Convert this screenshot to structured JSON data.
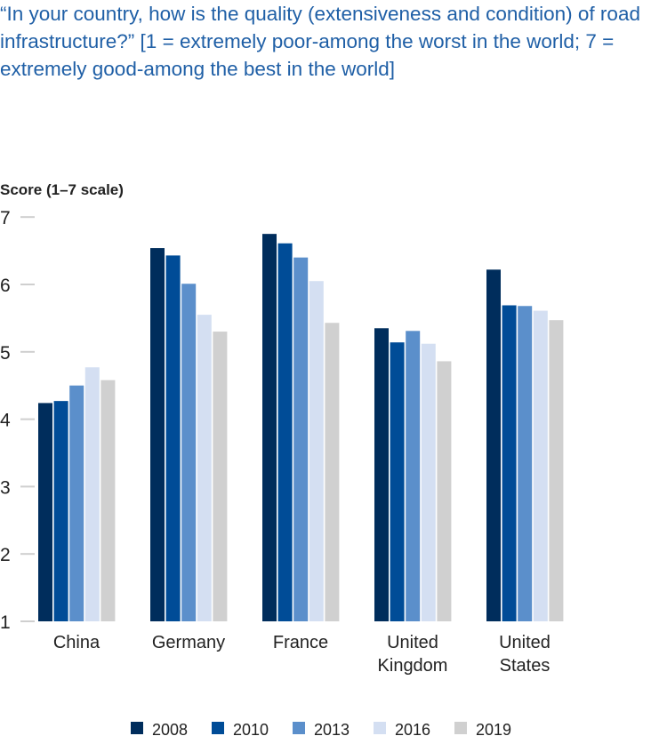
{
  "chart_data": {
    "type": "bar",
    "title": "“In your country, how is the quality (extensiveness and condition) of road infrastructure?” [1 = extremely poor-among the worst in the world; 7 = extremely good-among the best in the world]",
    "ylabel": "Score (1–7 scale)",
    "xlabel": "",
    "ylim": [
      1,
      7
    ],
    "yticks": [
      1,
      2,
      3,
      4,
      5,
      6,
      7
    ],
    "grid": false,
    "legend_position": "bottom",
    "categories": [
      [
        "China"
      ],
      [
        "Germany"
      ],
      [
        "France"
      ],
      [
        "United",
        "Kingdom"
      ],
      [
        "United",
        "States"
      ]
    ],
    "series": [
      {
        "name": "2008",
        "color": "#002d5c",
        "values": [
          4.24,
          6.54,
          6.75,
          5.35,
          6.22
        ]
      },
      {
        "name": "2010",
        "color": "#004c97",
        "values": [
          4.27,
          6.43,
          6.61,
          5.14,
          5.69
        ]
      },
      {
        "name": "2013",
        "color": "#5b8fcb",
        "values": [
          4.5,
          6.01,
          6.4,
          5.31,
          5.68
        ]
      },
      {
        "name": "2016",
        "color": "#d4dff2",
        "values": [
          4.77,
          5.55,
          6.05,
          5.12,
          5.61
        ]
      },
      {
        "name": "2019",
        "color": "#d0d0d0",
        "values": [
          4.58,
          5.3,
          5.43,
          4.86,
          5.47
        ]
      }
    ]
  }
}
